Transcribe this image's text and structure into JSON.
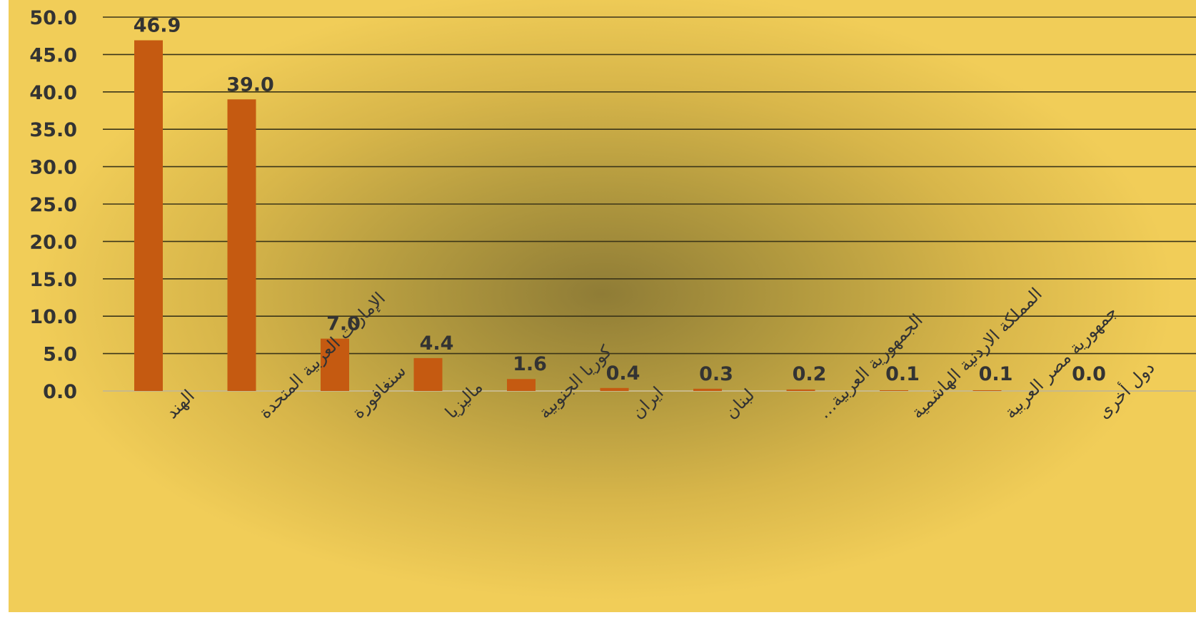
{
  "chart_data": {
    "type": "bar",
    "categories": [
      "الهند",
      "الإمارات العربية المتحدة",
      "سنغافورة",
      "ماليزيا",
      "كوريا الجنوبية",
      "ايران",
      "لبنان",
      "الجمهورية العربية…",
      "المملكة الاردنية الهاشمية",
      "جمهورية مصر العربية",
      "دول أخرى"
    ],
    "values": [
      46.9,
      39.0,
      7.0,
      4.4,
      1.6,
      0.4,
      0.3,
      0.2,
      0.1,
      0.1,
      0.0
    ],
    "data_labels": [
      "46.9",
      "39.0",
      "7.0",
      "4.4",
      "1.6",
      "0.4",
      "0.3",
      "0.2",
      "0.1",
      "0.1",
      "0.0"
    ],
    "y_ticks": [
      "0.0",
      "5.0",
      "10.0",
      "15.0",
      "20.0",
      "25.0",
      "30.0",
      "35.0",
      "40.0",
      "45.0",
      "50.0"
    ],
    "ylim": [
      0,
      50
    ],
    "grid": true,
    "legend": "none",
    "bar_color": "#c55a11",
    "title": "",
    "xlabel": "",
    "ylabel": ""
  }
}
